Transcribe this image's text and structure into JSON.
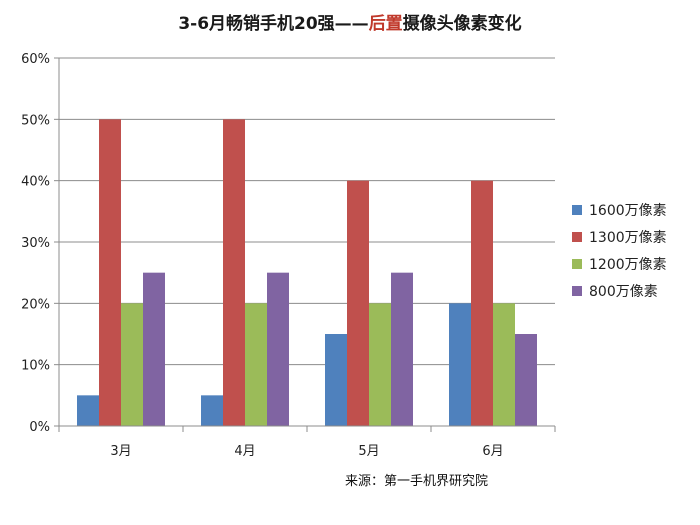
{
  "chart_data": {
    "type": "bar",
    "title": {
      "prefix": "3-6月畅销手机20强——",
      "highlight": "后置",
      "suffix": "摄像头像素变化"
    },
    "categories": [
      "3月",
      "4月",
      "5月",
      "6月"
    ],
    "series": [
      {
        "name": "1600万像素",
        "color": "#4f81bd",
        "values": [
          5,
          5,
          15,
          20
        ]
      },
      {
        "name": "1300万像素",
        "color": "#c0504d",
        "values": [
          50,
          50,
          40,
          40
        ]
      },
      {
        "name": "1200万像素",
        "color": "#9bbb59",
        "values": [
          20,
          20,
          20,
          20
        ]
      },
      {
        "name": "800万像素",
        "color": "#8064a2",
        "values": [
          25,
          25,
          25,
          15
        ]
      }
    ],
    "ylim": [
      0,
      60
    ],
    "yticks": [
      "0%",
      "10%",
      "20%",
      "30%",
      "40%",
      "50%",
      "60%"
    ],
    "grid": true,
    "legend_position": "right",
    "source_note": "来源：第一手机界研究院"
  }
}
